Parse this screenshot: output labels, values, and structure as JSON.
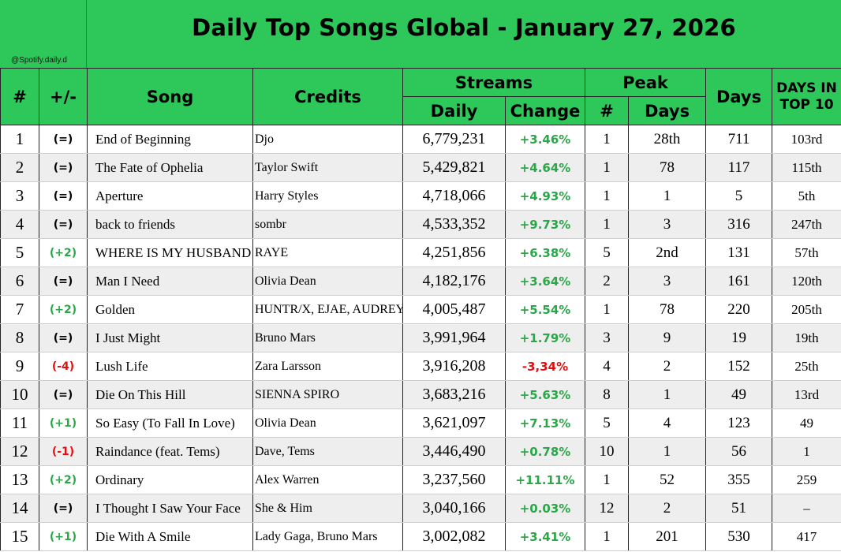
{
  "title": "Daily Top Songs Global - January 27, 2026",
  "handle": "@Spotify.daily.d",
  "colors": {
    "header_green": "#2ec85a",
    "positive": "#2aa748",
    "negative": "#e01010"
  },
  "columns": {
    "rank": "#",
    "change": "+/-",
    "song": "Song",
    "credits": "Credits",
    "streams": "Streams",
    "daily": "Daily",
    "pct_change": "Change",
    "peak": "Peak",
    "peak_num": "#",
    "peak_days": "Days",
    "days": "Days",
    "days_top10": "DAYS IN TOP 10"
  },
  "rows": [
    {
      "rank": "1",
      "change": "(=)",
      "song": "End of Beginning",
      "credits": "Djo",
      "daily": "6,779,231",
      "pct": "+3.46%",
      "peak": "1",
      "peak_days": "28th",
      "days": "711",
      "top10": "103rd"
    },
    {
      "rank": "2",
      "change": "(=)",
      "song": "The Fate of Ophelia",
      "credits": "Taylor Swift",
      "daily": "5,429,821",
      "pct": "+4.64%",
      "peak": "1",
      "peak_days": "78",
      "days": "117",
      "top10": "115th"
    },
    {
      "rank": "3",
      "change": "(=)",
      "song": "Aperture",
      "credits": "Harry Styles",
      "daily": "4,718,066",
      "pct": "+4.93%",
      "peak": "1",
      "peak_days": "1",
      "days": "5",
      "top10": "5th"
    },
    {
      "rank": "4",
      "change": "(=)",
      "song": "back to friends",
      "credits": "sombr",
      "daily": "4,533,352",
      "pct": "+9.73%",
      "peak": "1",
      "peak_days": "3",
      "days": "316",
      "top10": "247th"
    },
    {
      "rank": "5",
      "change": "(+2)",
      "song": "WHERE IS MY HUSBAND!",
      "credits": "RAYE",
      "daily": "4,251,856",
      "pct": "+6.38%",
      "peak": "5",
      "peak_days": "2nd",
      "days": "131",
      "top10": "57th"
    },
    {
      "rank": "6",
      "change": "(=)",
      "song": "Man I Need",
      "credits": "Olivia Dean",
      "daily": "4,182,176",
      "pct": "+3.64%",
      "peak": "2",
      "peak_days": "3",
      "days": "161",
      "top10": "120th"
    },
    {
      "rank": "7",
      "change": "(+2)",
      "song": "Golden",
      "credits": "HUNTR/X, EJAE, AUDREY NUNA",
      "daily": "4,005,487",
      "pct": "+5.54%",
      "peak": "1",
      "peak_days": "78",
      "days": "220",
      "top10": "205th"
    },
    {
      "rank": "8",
      "change": "(=)",
      "song": "I Just Might",
      "credits": "Bruno Mars",
      "daily": "3,991,964",
      "pct": "+1.79%",
      "peak": "3",
      "peak_days": "9",
      "days": "19",
      "top10": "19th"
    },
    {
      "rank": "9",
      "change": "(-4)",
      "song": "Lush Life",
      "credits": "Zara Larsson",
      "daily": "3,916,208",
      "pct": "-3,34%",
      "peak": "4",
      "peak_days": "2",
      "days": "152",
      "top10": "25th"
    },
    {
      "rank": "10",
      "change": "(=)",
      "song": "Die On This Hill",
      "credits": "SIENNA SPIRO",
      "daily": "3,683,216",
      "pct": "+5.63%",
      "peak": "8",
      "peak_days": "1",
      "days": "49",
      "top10": "13rd"
    },
    {
      "rank": "11",
      "change": "(+1)",
      "song": "So Easy (To Fall In Love)",
      "credits": "Olivia Dean",
      "daily": "3,621,097",
      "pct": "+7.13%",
      "peak": "5",
      "peak_days": "4",
      "days": "123",
      "top10": "49"
    },
    {
      "rank": "12",
      "change": "(-1)",
      "song": "Raindance (feat. Tems)",
      "credits": "Dave, Tems",
      "daily": "3,446,490",
      "pct": "+0.78%",
      "peak": "10",
      "peak_days": "1",
      "days": "56",
      "top10": "1"
    },
    {
      "rank": "13",
      "change": "(+2)",
      "song": "Ordinary",
      "credits": "Alex Warren",
      "daily": "3,237,560",
      "pct": "+11.11%",
      "peak": "1",
      "peak_days": "52",
      "days": "355",
      "top10": "259"
    },
    {
      "rank": "14",
      "change": "(=)",
      "song": "I Thought I Saw Your Face",
      "credits": "She & Him",
      "daily": "3,040,166",
      "pct": "+0.03%",
      "peak": "12",
      "peak_days": "2",
      "days": "51",
      "top10": "–"
    },
    {
      "rank": "15",
      "change": "(+1)",
      "song": "Die With A Smile",
      "credits": "Lady Gaga, Bruno Mars",
      "daily": "3,002,082",
      "pct": "+3.41%",
      "peak": "1",
      "peak_days": "201",
      "days": "530",
      "top10": "417"
    }
  ]
}
